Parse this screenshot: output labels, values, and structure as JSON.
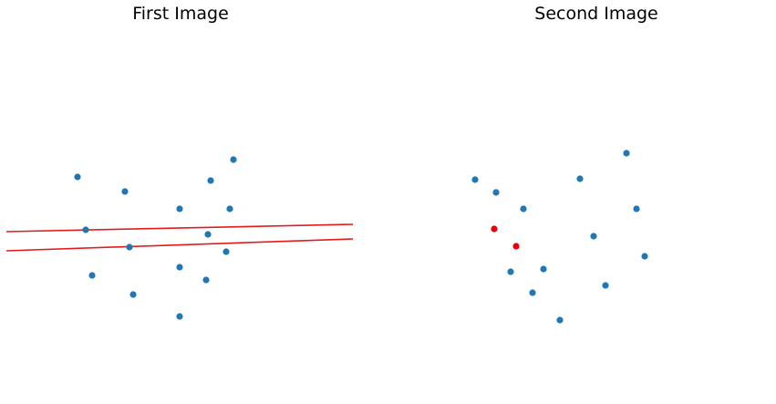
{
  "chart_data": [
    {
      "type": "scatter",
      "title": "First Image",
      "axes_visible": false,
      "xlim": [
        0,
        380
      ],
      "ylim": [
        0,
        420
      ],
      "points": [
        {
          "x": 78,
          "y": 246
        },
        {
          "x": 130,
          "y": 230
        },
        {
          "x": 190,
          "y": 211
        },
        {
          "x": 224,
          "y": 242
        },
        {
          "x": 249,
          "y": 265
        },
        {
          "x": 245,
          "y": 211
        },
        {
          "x": 87,
          "y": 188
        },
        {
          "x": 135,
          "y": 169
        },
        {
          "x": 221,
          "y": 183
        },
        {
          "x": 241,
          "y": 164
        },
        {
          "x": 94,
          "y": 138
        },
        {
          "x": 190,
          "y": 147
        },
        {
          "x": 219,
          "y": 133
        },
        {
          "x": 139,
          "y": 117
        },
        {
          "x": 190,
          "y": 93
        }
      ],
      "highlight_points": [],
      "lines": [
        {
          "x": [
            0,
            380
          ],
          "y": [
            186,
            194
          ],
          "color": "#e41a1c"
        },
        {
          "x": [
            0,
            380
          ],
          "y": [
            165,
            178
          ],
          "color": "#e41a1c"
        }
      ],
      "point_color": "#1f77b4"
    },
    {
      "type": "scatter",
      "title": "Second Image",
      "axes_visible": false,
      "xlim": [
        0,
        380
      ],
      "ylim": [
        0,
        420
      ],
      "points": [
        {
          "x": 66,
          "y": 243
        },
        {
          "x": 89,
          "y": 229
        },
        {
          "x": 119,
          "y": 211
        },
        {
          "x": 181,
          "y": 244
        },
        {
          "x": 232,
          "y": 272
        },
        {
          "x": 243,
          "y": 211
        },
        {
          "x": 196,
          "y": 181
        },
        {
          "x": 252,
          "y": 159
        },
        {
          "x": 105,
          "y": 142
        },
        {
          "x": 141,
          "y": 145
        },
        {
          "x": 129,
          "y": 119
        },
        {
          "x": 209,
          "y": 127
        },
        {
          "x": 159,
          "y": 89
        }
      ],
      "highlight_points": [
        {
          "x": 87,
          "y": 189
        },
        {
          "x": 111,
          "y": 170
        }
      ],
      "lines": [],
      "point_color": "#1f77b4",
      "highlight_color": "#e8000b"
    }
  ]
}
